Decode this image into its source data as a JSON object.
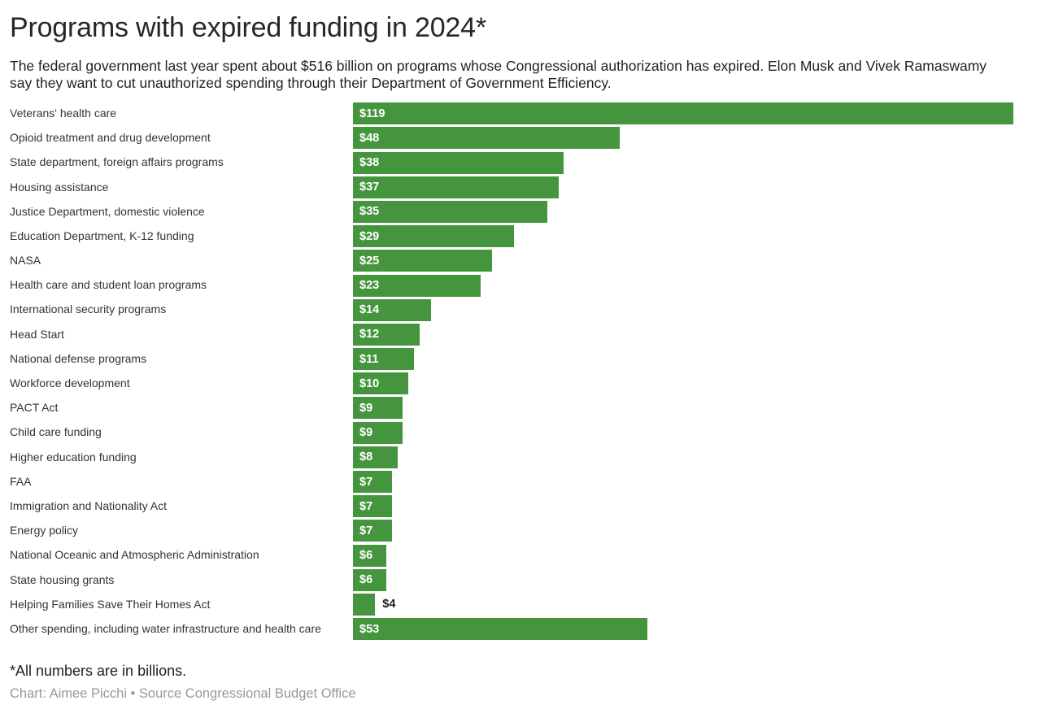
{
  "page": {
    "title": "Programs with expired funding in 2024*",
    "subtitle": "The federal government last year spent about $516 billion on programs whose Congressional authorization has expired. Elon Musk and Vivek Ramaswamy say they want to cut unauthorized spending through their Department of Government Efficiency.",
    "footnote": "*All numbers are in billions.",
    "credit": "Chart: Aimee Picchi • Source Congressional Budget Office"
  },
  "chart_data": {
    "type": "bar",
    "orientation": "horizontal",
    "title": "Programs with expired funding in 2024*",
    "unit_note": "All numbers are in billions",
    "xlim": [
      0,
      119
    ],
    "grid": false,
    "legend": false,
    "bar_color": "#45953e",
    "value_label_color_inside": "#ffffff",
    "value_label_color_outside": "#222222",
    "categories": [
      "Veterans' health care",
      "Opioid treatment and drug development",
      "State department, foreign affairs programs",
      "Housing assistance",
      "Justice Department, domestic violence",
      "Education Department, K-12 funding",
      "NASA",
      "Health care and student loan programs",
      "International security programs",
      "Head Start",
      "National defense programs",
      "Workforce development",
      "PACT Act",
      "Child care funding",
      "Higher education funding",
      "FAA",
      "Immigration and Nationality Act",
      "Energy policy",
      "National Oceanic and Atmospheric Administration",
      "State housing grants",
      "Helping Families Save Their Homes Act",
      "Other spending, including water infrastructure and health care"
    ],
    "values": [
      119,
      48,
      38,
      37,
      35,
      29,
      25,
      23,
      14,
      12,
      11,
      10,
      9,
      9,
      8,
      7,
      7,
      7,
      6,
      6,
      4,
      53
    ],
    "value_labels": [
      "$119",
      "$48",
      "$38",
      "$37",
      "$35",
      "$29",
      "$25",
      "$23",
      "$14",
      "$12",
      "$11",
      "$10",
      "$9",
      "$9",
      "$8",
      "$7",
      "$7",
      "$7",
      "$6",
      "$6",
      "$4",
      "$53"
    ],
    "label_positions": [
      "inside",
      "inside",
      "inside",
      "inside",
      "inside",
      "inside",
      "inside",
      "inside",
      "inside",
      "inside",
      "inside",
      "inside",
      "inside",
      "inside",
      "inside",
      "inside",
      "inside",
      "inside",
      "inside",
      "inside",
      "outside",
      "inside"
    ]
  }
}
